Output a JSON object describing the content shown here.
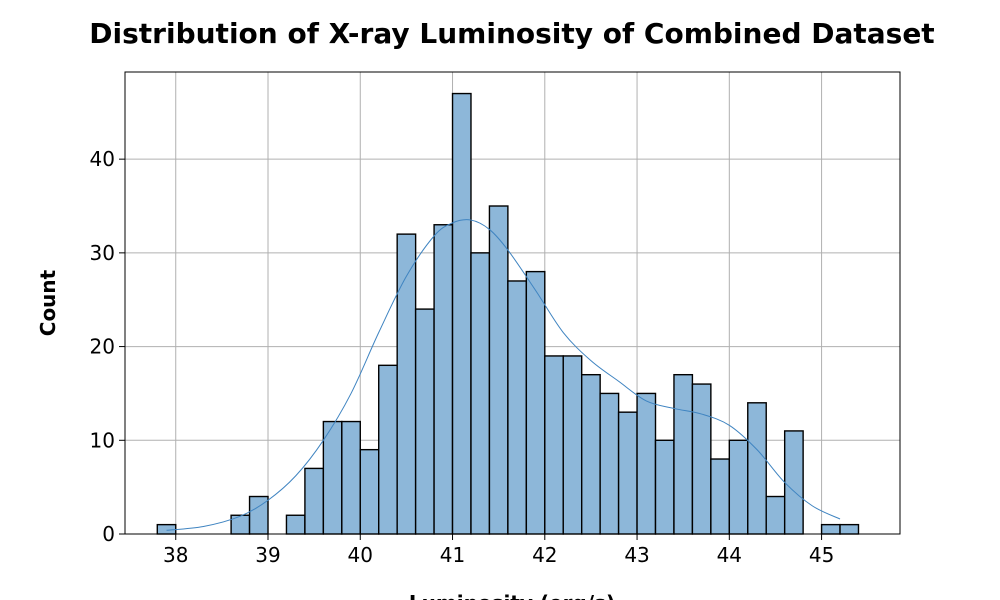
{
  "chart_data": {
    "type": "bar",
    "title": "Distribution of X-ray Luminosity of Combined Dataset",
    "xlabel": "Luminosity (erg/s)",
    "ylabel": "Count",
    "xlim": [
      37.45,
      45.85
    ],
    "ylim": [
      0,
      49.3
    ],
    "x_ticks": [
      38,
      39,
      40,
      41,
      42,
      43,
      44,
      45
    ],
    "y_ticks": [
      0,
      10,
      20,
      30,
      40
    ],
    "grid": true,
    "bin_width": 0.2,
    "bins": [
      {
        "start": 37.8,
        "count": 1
      },
      {
        "start": 38.0,
        "count": 0
      },
      {
        "start": 38.2,
        "count": 0
      },
      {
        "start": 38.4,
        "count": 0
      },
      {
        "start": 38.6,
        "count": 2
      },
      {
        "start": 38.8,
        "count": 4
      },
      {
        "start": 39.0,
        "count": 0
      },
      {
        "start": 39.2,
        "count": 2
      },
      {
        "start": 39.4,
        "count": 7
      },
      {
        "start": 39.6,
        "count": 12
      },
      {
        "start": 39.8,
        "count": 12
      },
      {
        "start": 40.0,
        "count": 9
      },
      {
        "start": 40.2,
        "count": 18
      },
      {
        "start": 40.4,
        "count": 32
      },
      {
        "start": 40.6,
        "count": 24
      },
      {
        "start": 40.8,
        "count": 33
      },
      {
        "start": 41.0,
        "count": 47
      },
      {
        "start": 41.2,
        "count": 30
      },
      {
        "start": 41.4,
        "count": 35
      },
      {
        "start": 41.6,
        "count": 27
      },
      {
        "start": 41.8,
        "count": 28
      },
      {
        "start": 42.0,
        "count": 19
      },
      {
        "start": 42.2,
        "count": 19
      },
      {
        "start": 42.4,
        "count": 17
      },
      {
        "start": 42.6,
        "count": 15
      },
      {
        "start": 42.8,
        "count": 13
      },
      {
        "start": 43.0,
        "count": 15
      },
      {
        "start": 43.2,
        "count": 10
      },
      {
        "start": 43.4,
        "count": 17
      },
      {
        "start": 43.6,
        "count": 16
      },
      {
        "start": 43.8,
        "count": 8
      },
      {
        "start": 44.0,
        "count": 10
      },
      {
        "start": 44.2,
        "count": 14
      },
      {
        "start": 44.4,
        "count": 4
      },
      {
        "start": 44.6,
        "count": 11
      },
      {
        "start": 44.8,
        "count": 0
      },
      {
        "start": 45.0,
        "count": 1
      },
      {
        "start": 45.2,
        "count": 1
      }
    ],
    "kde": {
      "x": [
        37.9,
        38.3,
        38.7,
        39.0,
        39.3,
        39.6,
        39.9,
        40.2,
        40.5,
        40.8,
        41.0,
        41.2,
        41.4,
        41.6,
        41.9,
        42.2,
        42.5,
        42.8,
        43.1,
        43.4,
        43.7,
        44.0,
        44.3,
        44.6,
        44.9,
        45.2
      ],
      "y": [
        0.4,
        0.8,
        1.9,
        3.6,
        6.2,
        10.0,
        15.0,
        21.5,
        27.5,
        31.8,
        33.2,
        33.5,
        32.5,
        30.3,
        26.0,
        21.5,
        18.5,
        16.3,
        14.2,
        13.4,
        12.8,
        11.6,
        9.0,
        5.5,
        3.0,
        1.6
      ]
    },
    "colors": {
      "bar_fill": "#8db7d9",
      "bar_edge": "#000000",
      "kde_line": "#3f84c1",
      "grid": "#b0b0b0"
    }
  }
}
